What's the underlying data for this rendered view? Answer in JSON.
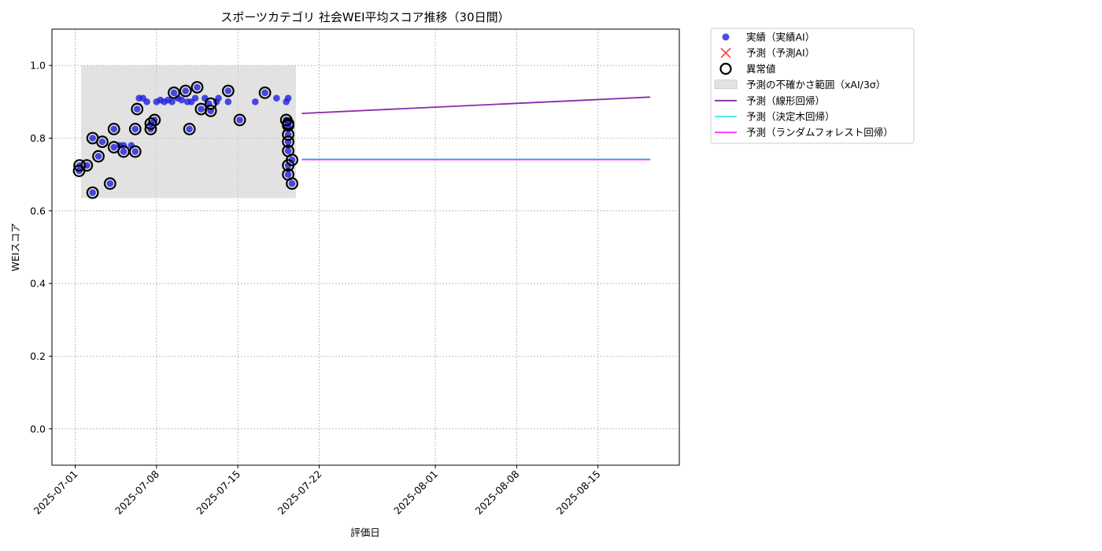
{
  "chart_data": {
    "type": "scatter",
    "title": "スポーツカテゴリ 社会WEI平均スコア推移（30日間）",
    "xlabel": "評価日",
    "ylabel": "WEIスコア",
    "xlim": [
      "2025-06-29",
      "2025-08-22"
    ],
    "ylim": [
      -0.1,
      1.1
    ],
    "x_ticks": [
      "2025-07-01",
      "2025-07-08",
      "2025-07-15",
      "2025-07-22",
      "2025-08-01",
      "2025-08-08",
      "2025-08-15"
    ],
    "y_ticks": [
      0.0,
      0.2,
      0.4,
      0.6,
      0.8,
      1.0
    ],
    "y_tick_labels": [
      "0.0",
      "0.2",
      "0.4",
      "0.6",
      "0.8",
      "1.0"
    ],
    "grid": true,
    "legend_position": "outside-top-right",
    "uncertainty_band": {
      "label": "予測の不確かさ範囲（xAI/3σ）",
      "x_start": "2025-07-01 12:00",
      "x_end": "2025-07-20",
      "y_low": 0.635,
      "y_high": 1.0,
      "color": "#d3d3d3"
    },
    "series": [
      {
        "name": "実績（実績AI）",
        "kind": "scatter",
        "color": "#1f1fe0",
        "points": [
          {
            "x": "2025-07-01 08:00",
            "y": 0.71
          },
          {
            "x": "2025-07-01 09:00",
            "y": 0.725
          },
          {
            "x": "2025-07-02 00:00",
            "y": 0.725
          },
          {
            "x": "2025-07-02 12:00",
            "y": 0.65
          },
          {
            "x": "2025-07-02 12:00",
            "y": 0.8
          },
          {
            "x": "2025-07-03 00:00",
            "y": 0.75
          },
          {
            "x": "2025-07-03 08:00",
            "y": 0.79
          },
          {
            "x": "2025-07-04 00:00",
            "y": 0.675
          },
          {
            "x": "2025-07-04 08:00",
            "y": 0.825
          },
          {
            "x": "2025-07-04 08:00",
            "y": 0.775
          },
          {
            "x": "2025-07-04 20:00",
            "y": 0.78
          },
          {
            "x": "2025-07-05 04:00",
            "y": 0.763
          },
          {
            "x": "2025-07-05 04:00",
            "y": 0.78
          },
          {
            "x": "2025-07-05 20:00",
            "y": 0.78
          },
          {
            "x": "2025-07-06 04:00",
            "y": 0.763
          },
          {
            "x": "2025-07-06 04:00",
            "y": 0.825
          },
          {
            "x": "2025-07-06 08:00",
            "y": 0.88
          },
          {
            "x": "2025-07-06 12:00",
            "y": 0.91
          },
          {
            "x": "2025-07-06 20:00",
            "y": 0.91
          },
          {
            "x": "2025-07-07 04:00",
            "y": 0.9
          },
          {
            "x": "2025-07-07 12:00",
            "y": 0.825
          },
          {
            "x": "2025-07-07 12:00",
            "y": 0.84
          },
          {
            "x": "2025-07-07 20:00",
            "y": 0.85
          },
          {
            "x": "2025-07-08 00:00",
            "y": 0.9
          },
          {
            "x": "2025-07-08 08:00",
            "y": 0.905
          },
          {
            "x": "2025-07-08 16:00",
            "y": 0.9
          },
          {
            "x": "2025-07-09 00:00",
            "y": 0.905
          },
          {
            "x": "2025-07-09 08:00",
            "y": 0.9
          },
          {
            "x": "2025-07-09 12:00",
            "y": 0.925
          },
          {
            "x": "2025-07-09 20:00",
            "y": 0.91
          },
          {
            "x": "2025-07-10 04:00",
            "y": 0.905
          },
          {
            "x": "2025-07-10 12:00",
            "y": 0.93
          },
          {
            "x": "2025-07-10 16:00",
            "y": 0.9
          },
          {
            "x": "2025-07-10 20:00",
            "y": 0.825
          },
          {
            "x": "2025-07-11 00:00",
            "y": 0.9
          },
          {
            "x": "2025-07-11 08:00",
            "y": 0.91
          },
          {
            "x": "2025-07-11 12:00",
            "y": 0.94
          },
          {
            "x": "2025-07-11 20:00",
            "y": 0.88
          },
          {
            "x": "2025-07-12 04:00",
            "y": 0.91
          },
          {
            "x": "2025-07-12 12:00",
            "y": 0.895
          },
          {
            "x": "2025-07-12 16:00",
            "y": 0.875
          },
          {
            "x": "2025-07-13 04:00",
            "y": 0.9
          },
          {
            "x": "2025-07-13 08:00",
            "y": 0.91
          },
          {
            "x": "2025-07-14 04:00",
            "y": 0.93
          },
          {
            "x": "2025-07-14 04:00",
            "y": 0.9
          },
          {
            "x": "2025-07-15 04:00",
            "y": 0.85
          },
          {
            "x": "2025-07-16 12:00",
            "y": 0.9
          },
          {
            "x": "2025-07-17 08:00",
            "y": 0.925
          },
          {
            "x": "2025-07-18 08:00",
            "y": 0.91
          },
          {
            "x": "2025-07-19 04:00",
            "y": 0.85
          },
          {
            "x": "2025-07-19 04:00",
            "y": 0.9
          },
          {
            "x": "2025-07-19 08:00",
            "y": 0.91
          },
          {
            "x": "2025-07-19 08:00",
            "y": 0.84
          },
          {
            "x": "2025-07-19 08:00",
            "y": 0.835
          },
          {
            "x": "2025-07-19 08:00",
            "y": 0.81
          },
          {
            "x": "2025-07-19 08:00",
            "y": 0.79
          },
          {
            "x": "2025-07-19 08:00",
            "y": 0.765
          },
          {
            "x": "2025-07-19 08:00",
            "y": 0.725
          },
          {
            "x": "2025-07-19 08:00",
            "y": 0.7
          },
          {
            "x": "2025-07-19 16:00",
            "y": 0.74
          },
          {
            "x": "2025-07-19 16:00",
            "y": 0.675
          }
        ]
      },
      {
        "name": "予測（予測AI）",
        "kind": "x-marker",
        "color": "#ff3b3b",
        "points": []
      },
      {
        "name": "異常値",
        "kind": "ring",
        "color": "#000000",
        "points": [
          {
            "x": "2025-07-01 08:00",
            "y": 0.71
          },
          {
            "x": "2025-07-01 09:00",
            "y": 0.725
          },
          {
            "x": "2025-07-02 00:00",
            "y": 0.725
          },
          {
            "x": "2025-07-02 12:00",
            "y": 0.65
          },
          {
            "x": "2025-07-02 12:00",
            "y": 0.8
          },
          {
            "x": "2025-07-03 00:00",
            "y": 0.75
          },
          {
            "x": "2025-07-03 08:00",
            "y": 0.79
          },
          {
            "x": "2025-07-04 00:00",
            "y": 0.675
          },
          {
            "x": "2025-07-04 08:00",
            "y": 0.825
          },
          {
            "x": "2025-07-04 08:00",
            "y": 0.775
          },
          {
            "x": "2025-07-05 04:00",
            "y": 0.763
          },
          {
            "x": "2025-07-06 04:00",
            "y": 0.763
          },
          {
            "x": "2025-07-06 04:00",
            "y": 0.825
          },
          {
            "x": "2025-07-06 08:00",
            "y": 0.88
          },
          {
            "x": "2025-07-07 12:00",
            "y": 0.825
          },
          {
            "x": "2025-07-07 12:00",
            "y": 0.84
          },
          {
            "x": "2025-07-07 20:00",
            "y": 0.85
          },
          {
            "x": "2025-07-09 12:00",
            "y": 0.925
          },
          {
            "x": "2025-07-10 12:00",
            "y": 0.93
          },
          {
            "x": "2025-07-10 20:00",
            "y": 0.825
          },
          {
            "x": "2025-07-11 12:00",
            "y": 0.94
          },
          {
            "x": "2025-07-11 20:00",
            "y": 0.88
          },
          {
            "x": "2025-07-12 16:00",
            "y": 0.875
          },
          {
            "x": "2025-07-12 16:00",
            "y": 0.895
          },
          {
            "x": "2025-07-14 04:00",
            "y": 0.93
          },
          {
            "x": "2025-07-15 04:00",
            "y": 0.85
          },
          {
            "x": "2025-07-17 08:00",
            "y": 0.925
          },
          {
            "x": "2025-07-19 04:00",
            "y": 0.85
          },
          {
            "x": "2025-07-19 08:00",
            "y": 0.84
          },
          {
            "x": "2025-07-19 08:00",
            "y": 0.835
          },
          {
            "x": "2025-07-19 08:00",
            "y": 0.81
          },
          {
            "x": "2025-07-19 08:00",
            "y": 0.79
          },
          {
            "x": "2025-07-19 08:00",
            "y": 0.765
          },
          {
            "x": "2025-07-19 08:00",
            "y": 0.725
          },
          {
            "x": "2025-07-19 08:00",
            "y": 0.7
          },
          {
            "x": "2025-07-19 16:00",
            "y": 0.74
          },
          {
            "x": "2025-07-19 16:00",
            "y": 0.675
          }
        ]
      },
      {
        "name": "予測（線形回帰）",
        "kind": "line",
        "color": "#8b2aa6",
        "points": [
          {
            "x": "2025-07-20 12:00",
            "y": 0.868
          },
          {
            "x": "2025-08-19 12:00",
            "y": 0.913
          }
        ]
      },
      {
        "name": "予測（決定木回帰）",
        "kind": "line",
        "color": "#3fe8f0",
        "points": [
          {
            "x": "2025-07-20 12:00",
            "y": 0.742
          },
          {
            "x": "2025-08-19 12:00",
            "y": 0.742
          }
        ]
      },
      {
        "name": "予測（ランダムフォレスト回帰）",
        "kind": "line",
        "color": "#ff33ff",
        "points": [
          {
            "x": "2025-07-20 12:00",
            "y": 0.741
          },
          {
            "x": "2025-08-19 12:00",
            "y": 0.741
          }
        ]
      }
    ]
  }
}
